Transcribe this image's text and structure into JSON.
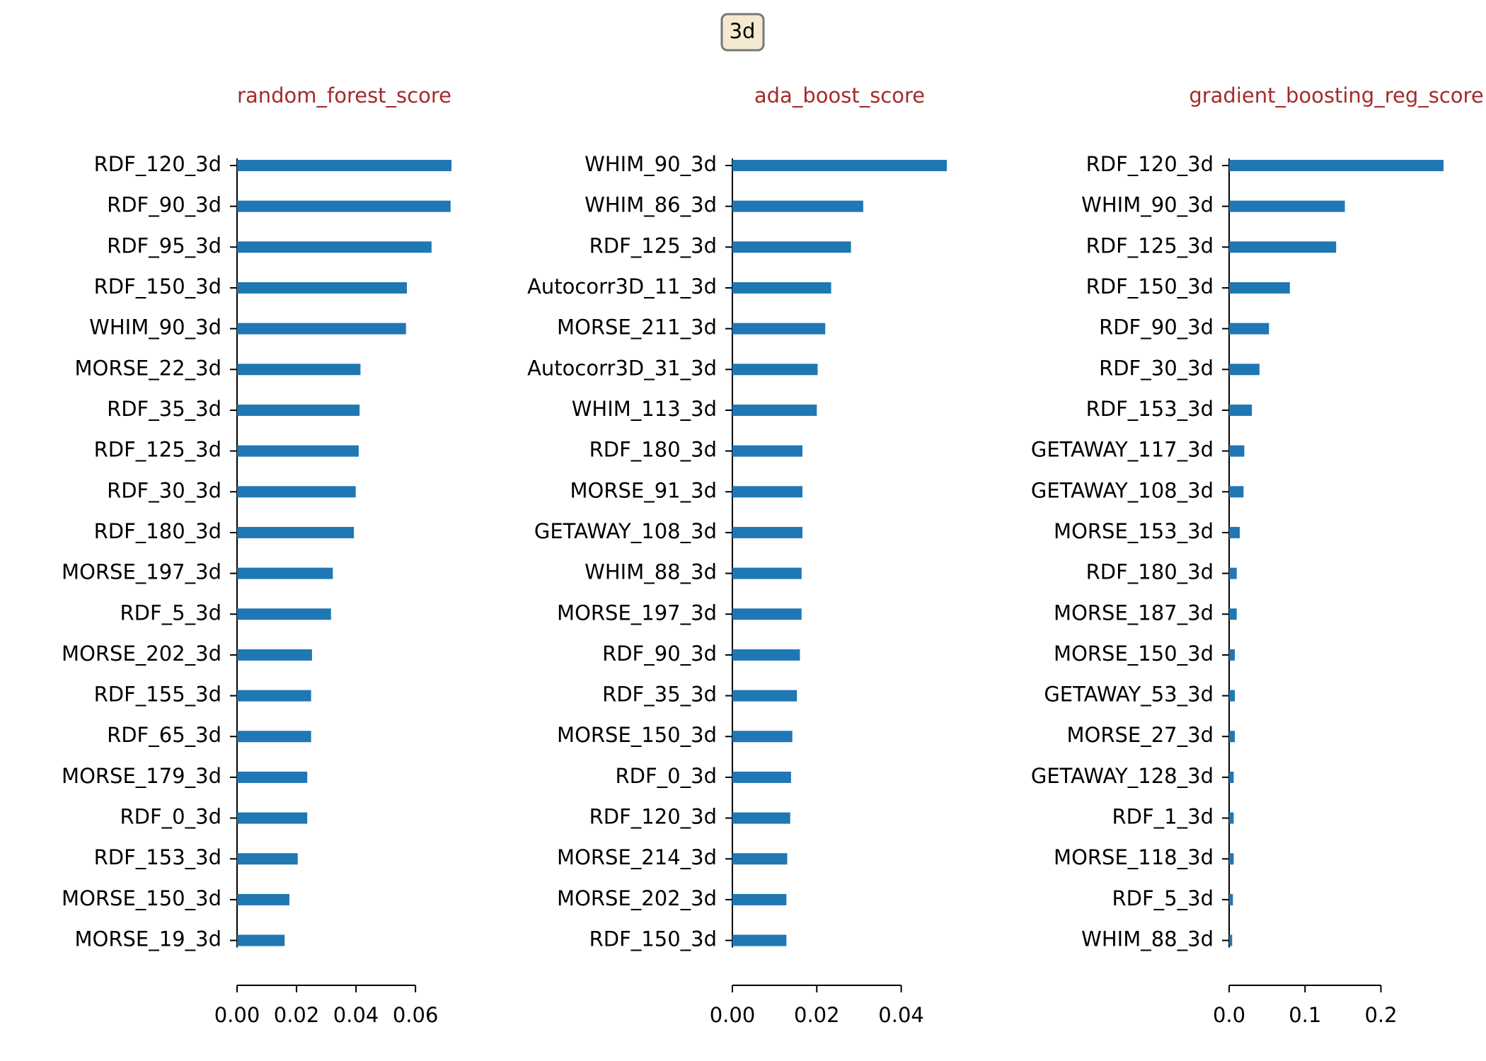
{
  "figure_title": "3d",
  "chart_data": [
    {
      "type": "bar",
      "orientation": "horizontal",
      "title": "random_forest_score",
      "color": "#1f77b4",
      "categories": [
        "RDF_120_3d",
        "RDF_90_3d",
        "RDF_95_3d",
        "RDF_150_3d",
        "WHIM_90_3d",
        "MORSE_22_3d",
        "RDF_35_3d",
        "RDF_125_3d",
        "RDF_30_3d",
        "RDF_180_3d",
        "MORSE_197_3d",
        "RDF_5_3d",
        "MORSE_202_3d",
        "RDF_155_3d",
        "RDF_65_3d",
        "MORSE_179_3d",
        "RDF_0_3d",
        "RDF_153_3d",
        "MORSE_150_3d",
        "MORSE_19_3d"
      ],
      "values": [
        0.0721,
        0.0718,
        0.0654,
        0.0571,
        0.0568,
        0.0415,
        0.0412,
        0.0409,
        0.0399,
        0.0393,
        0.0322,
        0.0316,
        0.0252,
        0.0249,
        0.0249,
        0.0236,
        0.0236,
        0.0204,
        0.0176,
        0.016
      ],
      "xlim": [
        0,
        0.0721
      ],
      "xticks": [
        {
          "value": 0,
          "label": "0.00"
        },
        {
          "value": 0.02,
          "label": "0.02"
        },
        {
          "value": 0.04,
          "label": "0.04"
        },
        {
          "value": 0.06,
          "label": "0.06"
        }
      ]
    },
    {
      "type": "bar",
      "orientation": "horizontal",
      "title": "ada_boost_score",
      "color": "#1f77b4",
      "categories": [
        "WHIM_90_3d",
        "WHIM_86_3d",
        "RDF_125_3d",
        "Autocorr3D_11_3d",
        "MORSE_211_3d",
        "Autocorr3D_31_3d",
        "WHIM_113_3d",
        "RDF_180_3d",
        "MORSE_91_3d",
        "GETAWAY_108_3d",
        "WHIM_88_3d",
        "MORSE_197_3d",
        "RDF_90_3d",
        "RDF_35_3d",
        "MORSE_150_3d",
        "RDF_0_3d",
        "RDF_120_3d",
        "MORSE_214_3d",
        "MORSE_202_3d",
        "RDF_150_3d"
      ],
      "values": [
        0.0508,
        0.031,
        0.0281,
        0.0234,
        0.022,
        0.0202,
        0.02,
        0.0166,
        0.0166,
        0.0166,
        0.0164,
        0.0164,
        0.016,
        0.0153,
        0.0142,
        0.0139,
        0.0137,
        0.013,
        0.0128,
        0.0128
      ],
      "xlim": [
        0,
        0.0508
      ],
      "xticks": [
        {
          "value": 0,
          "label": "0.00"
        },
        {
          "value": 0.02,
          "label": "0.02"
        },
        {
          "value": 0.04,
          "label": "0.04"
        }
      ]
    },
    {
      "type": "bar",
      "orientation": "horizontal",
      "title": "gradient_boosting_reg_score",
      "color": "#1f77b4",
      "categories": [
        "RDF_120_3d",
        "WHIM_90_3d",
        "RDF_125_3d",
        "RDF_150_3d",
        "RDF_90_3d",
        "RDF_30_3d",
        "RDF_153_3d",
        "GETAWAY_117_3d",
        "GETAWAY_108_3d",
        "MORSE_153_3d",
        "RDF_180_3d",
        "MORSE_187_3d",
        "MORSE_150_3d",
        "GETAWAY_53_3d",
        "MORSE_27_3d",
        "GETAWAY_128_3d",
        "RDF_1_3d",
        "MORSE_118_3d",
        "RDF_5_3d",
        "WHIM_88_3d"
      ],
      "values": [
        0.2825,
        0.1525,
        0.141,
        0.08,
        0.0525,
        0.04,
        0.03,
        0.02,
        0.019,
        0.014,
        0.01,
        0.01,
        0.0075,
        0.0075,
        0.0075,
        0.006,
        0.006,
        0.006,
        0.005,
        0.004
      ],
      "xlim": [
        0,
        0.2825
      ],
      "xticks": [
        {
          "value": 0,
          "label": "0.0"
        },
        0.1,
        0.2
      ]
    }
  ]
}
